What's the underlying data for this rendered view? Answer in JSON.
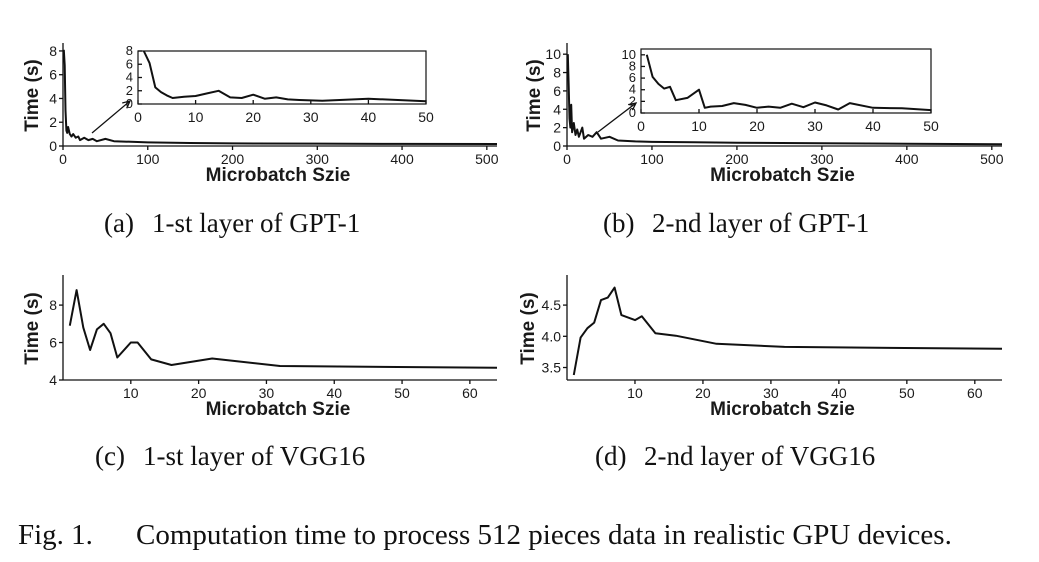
{
  "chart_data": [
    {
      "type": "line",
      "caption_label": "(a)",
      "caption_text": "1-st layer of GPT-1",
      "xlabel": "Microbatch Szie",
      "ylabel": "Time (s)",
      "xlim": [
        0,
        512
      ],
      "ylim": [
        0,
        8.5
      ],
      "xticks": [
        0,
        100,
        200,
        300,
        400,
        500
      ],
      "yticks": [
        0,
        2,
        4,
        6,
        8
      ],
      "x": [
        1,
        2,
        3,
        4,
        5,
        6,
        8,
        10,
        12,
        15,
        18,
        20,
        25,
        30,
        35,
        40,
        50,
        60,
        80,
        100,
        150,
        200,
        300,
        400,
        512
      ],
      "values": [
        8.1,
        6.8,
        3.0,
        1.3,
        1.1,
        1.6,
        1.0,
        0.8,
        1.0,
        0.7,
        0.8,
        0.5,
        0.7,
        0.5,
        0.6,
        0.4,
        0.6,
        0.4,
        0.35,
        0.3,
        0.25,
        0.22,
        0.2,
        0.18,
        0.17
      ],
      "inset": {
        "xlim": [
          0,
          50
        ],
        "ylim": [
          0,
          8
        ],
        "xticks": [
          0,
          10,
          20,
          30,
          40,
          50
        ],
        "yticks": [
          0,
          2,
          4,
          6,
          8
        ],
        "x": [
          1,
          2,
          3,
          4,
          5,
          6,
          8,
          10,
          12,
          14,
          16,
          18,
          20,
          22,
          24,
          26,
          28,
          32,
          35,
          40,
          50
        ],
        "values": [
          8.0,
          6.2,
          2.5,
          1.8,
          1.3,
          0.9,
          1.1,
          1.2,
          1.6,
          2.0,
          1.0,
          0.9,
          1.4,
          0.8,
          1.0,
          0.7,
          0.6,
          0.5,
          0.6,
          0.8,
          0.4
        ]
      }
    },
    {
      "type": "line",
      "caption_label": "(b)",
      "caption_text": "2-nd layer of GPT-1",
      "xlabel": "Microbatch Szie",
      "ylabel": "Time (s)",
      "xlim": [
        0,
        512
      ],
      "ylim": [
        0,
        11
      ],
      "xticks": [
        0,
        100,
        200,
        300,
        400,
        500
      ],
      "yticks": [
        0,
        2,
        4,
        6,
        8,
        10
      ],
      "x": [
        1,
        2,
        3,
        4,
        5,
        6,
        8,
        10,
        12,
        14,
        16,
        18,
        20,
        25,
        30,
        35,
        40,
        50,
        60,
        80,
        100,
        150,
        200,
        300,
        400,
        512
      ],
      "values": [
        10.0,
        6.5,
        3.0,
        2.0,
        4.5,
        1.5,
        2.5,
        1.2,
        1.8,
        1.0,
        1.5,
        2.0,
        0.8,
        1.2,
        1.0,
        1.5,
        0.8,
        1.0,
        0.6,
        0.5,
        0.45,
        0.4,
        0.35,
        0.3,
        0.25,
        0.2
      ],
      "inset": {
        "xlim": [
          0,
          50
        ],
        "ylim": [
          0,
          11
        ],
        "xticks": [
          0,
          10,
          20,
          30,
          40,
          50
        ],
        "yticks": [
          0,
          2,
          4,
          6,
          8,
          10
        ],
        "x": [
          1,
          2,
          3,
          4,
          5,
          6,
          8,
          10,
          11,
          12,
          14,
          16,
          18,
          20,
          22,
          24,
          26,
          28,
          30,
          32,
          34,
          36,
          40,
          45,
          50
        ],
        "values": [
          10.0,
          6.2,
          5.0,
          4.2,
          4.5,
          2.2,
          2.6,
          4.0,
          0.9,
          1.1,
          1.2,
          1.7,
          1.4,
          0.9,
          1.1,
          0.9,
          1.6,
          1.0,
          1.8,
          1.3,
          0.6,
          1.7,
          0.9,
          0.8,
          0.5
        ]
      }
    },
    {
      "type": "line",
      "caption_label": "(c)",
      "caption_text": "1-st layer of VGG16",
      "xlabel": "Microbatch Szie",
      "ylabel": "Time (s)",
      "xlim": [
        0,
        64
      ],
      "ylim": [
        4,
        9.5
      ],
      "xticks": [
        10,
        20,
        30,
        40,
        50,
        60
      ],
      "yticks": [
        4,
        6,
        8
      ],
      "x": [
        1,
        2,
        3,
        4,
        5,
        6,
        7,
        8,
        10,
        11,
        13,
        16,
        22,
        32,
        64
      ],
      "values": [
        6.9,
        8.8,
        6.8,
        5.6,
        6.7,
        7.0,
        6.5,
        5.2,
        6.0,
        6.0,
        5.1,
        4.8,
        5.15,
        4.75,
        4.65
      ]
    },
    {
      "type": "line",
      "caption_label": "(d)",
      "caption_text": "2-nd layer of VGG16",
      "xlabel": "Microbatch Szie",
      "ylabel": "Time (s)",
      "xlim": [
        0,
        64
      ],
      "ylim": [
        3.3,
        4.95
      ],
      "xticks": [
        10,
        20,
        30,
        40,
        50,
        60
      ],
      "yticks": [
        3.5,
        4.0,
        4.5
      ],
      "ytick_labels": [
        "3.5",
        "4.0",
        "4.5"
      ],
      "x": [
        1,
        2,
        3,
        4,
        5,
        6,
        7,
        8,
        10,
        11,
        13,
        16,
        22,
        32,
        64
      ],
      "values": [
        3.38,
        3.98,
        4.13,
        4.22,
        4.58,
        4.62,
        4.78,
        4.34,
        4.26,
        4.32,
        4.05,
        4.01,
        3.88,
        3.83,
        3.8
      ]
    }
  ],
  "figure_caption": {
    "label": "Fig. 1.",
    "text": "Computation time to process 512 pieces data in realistic GPU devices."
  }
}
